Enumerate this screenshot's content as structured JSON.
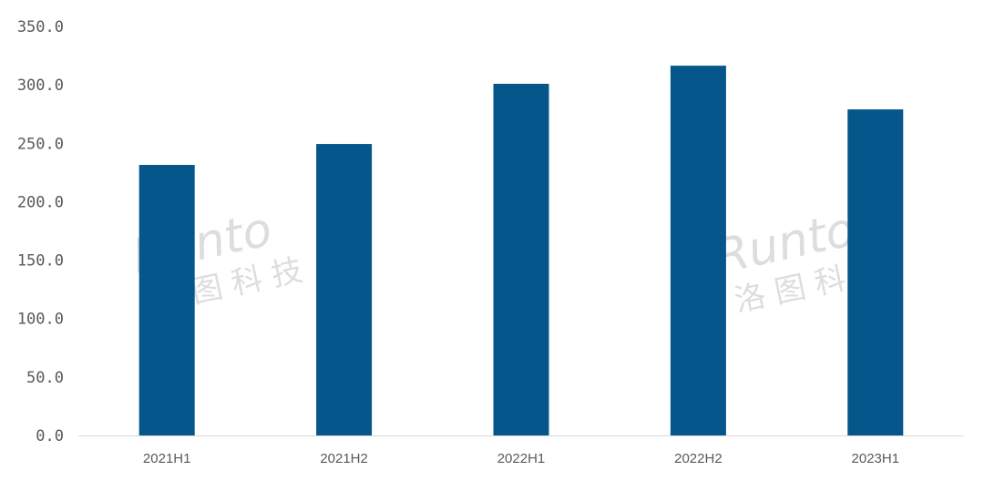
{
  "chart_data": {
    "type": "bar",
    "title": "",
    "xlabel": "",
    "ylabel": "",
    "categories": [
      "2021H1",
      "2021H2",
      "2022H1",
      "2022H2",
      "2023H1"
    ],
    "values": [
      231.5,
      249.4,
      300.9,
      316.4,
      279.0
    ],
    "ylim": [
      0,
      350
    ],
    "yticks": [
      "0.0",
      "50.0",
      "100.0",
      "150.0",
      "200.0",
      "250.0",
      "300.0",
      "350.0"
    ],
    "grid": false,
    "legend": "none",
    "bar_color": "#05568a",
    "watermark": "Runto 洛图科技"
  }
}
